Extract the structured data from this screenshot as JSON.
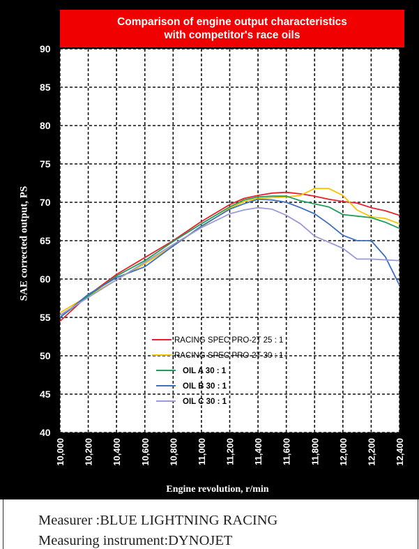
{
  "chart_data": {
    "type": "line",
    "title": "Comparison of engine output characteristics with competitor's race oils",
    "title_lines": [
      "Comparison of engine output characteristics",
      "with competitor's race oils"
    ],
    "xlabel": "Engine revolution, r/min",
    "ylabel": "SAE corrected output, PS",
    "xlim": [
      10000,
      12400
    ],
    "ylim": [
      40,
      90
    ],
    "x_ticks": [
      "10,000",
      "10,200",
      "10,400",
      "10,600",
      "10,800",
      "11,000",
      "11,200",
      "11,400",
      "11,600",
      "11,800",
      "12,000",
      "12,200",
      "12,400"
    ],
    "y_ticks": [
      "90",
      "85",
      "80",
      "75",
      "70",
      "65",
      "60",
      "55",
      "50",
      "45",
      "40"
    ],
    "grid": true,
    "legend_position": "inside-bottom-center",
    "x": [
      10000,
      10200,
      10400,
      10600,
      10800,
      11000,
      11200,
      11300,
      11400,
      11500,
      11600,
      11700,
      11800,
      11900,
      12000,
      12100,
      12200,
      12300,
      12400
    ],
    "series": [
      {
        "name": "RACING SPEC PRO-2T 25 : 1",
        "color": "#e8202a",
        "values": [
          54.5,
          57.9,
          60.6,
          62.8,
          65.0,
          67.5,
          69.7,
          70.5,
          70.9,
          71.2,
          71.3,
          71.1,
          70.8,
          70.4,
          70.1,
          69.9,
          69.3,
          68.9,
          68.3
        ]
      },
      {
        "name": "RACING SPEC PRO-2T 30 : 1",
        "color": "#f5c400",
        "values": [
          55.6,
          57.8,
          59.9,
          62.0,
          64.3,
          66.8,
          69.2,
          70.1,
          70.5,
          70.6,
          70.7,
          70.9,
          71.8,
          71.8,
          70.9,
          69.0,
          68.1,
          67.9,
          67.2
        ]
      },
      {
        "name": "OIL A 30 : 1",
        "color": "#1f9e5a",
        "values": [
          55.0,
          57.8,
          60.4,
          62.4,
          64.9,
          67.2,
          69.4,
          70.3,
          70.7,
          70.8,
          70.8,
          70.2,
          69.8,
          69.4,
          68.4,
          68.2,
          68.0,
          67.4,
          66.6
        ]
      },
      {
        "name": "OIL B 30 : 1",
        "color": "#3e6fc0",
        "values": [
          55.0,
          58.0,
          60.2,
          61.6,
          64.3,
          66.9,
          69.1,
          69.8,
          70.4,
          70.3,
          70.0,
          69.3,
          68.5,
          67.2,
          65.7,
          65.0,
          65.0,
          62.9,
          59.2
        ]
      },
      {
        "name": "OIL C 30 : 1",
        "color": "#9a9ad8",
        "values": [
          55.3,
          57.6,
          59.9,
          62.2,
          64.5,
          66.7,
          68.5,
          69.0,
          69.3,
          69.1,
          68.3,
          67.2,
          65.6,
          64.8,
          64.0,
          62.6,
          62.6,
          62.5,
          62.4
        ]
      }
    ]
  },
  "notes": {
    "measurer": "Measurer :BLUE LIGHTNING RACING",
    "instrument": "Measuring instrument:DYNOJET"
  }
}
